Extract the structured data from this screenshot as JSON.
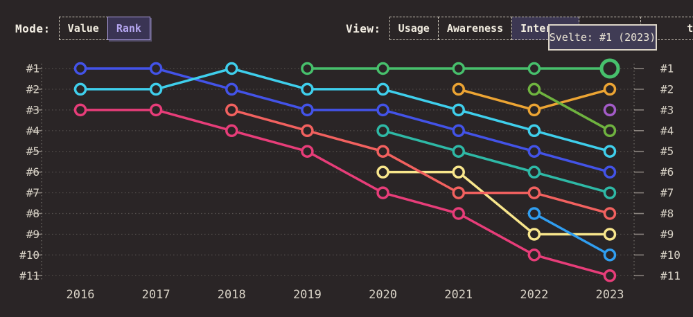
{
  "colors": {
    "background": "#2a2526",
    "grid": "#d8d2c6",
    "text_cream": "#f1ecdf",
    "accent_purple": "#b6a7f2",
    "tooltip_bg": "#403c55",
    "tooltip_border": "#ddd6c8"
  },
  "controls": {
    "mode": {
      "label": "Mode:",
      "options": [
        {
          "label": "Value",
          "selected": false
        },
        {
          "label": "Rank",
          "selected": true
        }
      ]
    },
    "view": {
      "label": "View:",
      "options": [
        {
          "label": "Usage",
          "selected": false
        },
        {
          "label": "Awareness",
          "selected": false
        },
        {
          "label": "Interest",
          "selected": true
        },
        {
          "label": "",
          "selected": false,
          "covered_by_tooltip": true
        },
        {
          "label": "ty",
          "selected": false,
          "partially_covered": true
        }
      ]
    }
  },
  "tooltip": {
    "text": "Svelte: #1 (2023)"
  },
  "chart_data": {
    "type": "line",
    "subtype": "bump-rank-chart",
    "x": [
      2016,
      2017,
      2018,
      2019,
      2020,
      2021,
      2022,
      2023
    ],
    "y_rank_labels": [
      "#1",
      "#2",
      "#3",
      "#4",
      "#5",
      "#6",
      "#7",
      "#8",
      "#9",
      "#10",
      "#11"
    ],
    "y_axis": {
      "orientation": "rank 1 at top",
      "shown_on": "both sides",
      "grid": "dotted"
    },
    "series": [
      {
        "id": "pink",
        "color": "#e73d79",
        "ranks": [
          3,
          3,
          4,
          5,
          7,
          8,
          10,
          11
        ]
      },
      {
        "id": "yellow",
        "color": "#f8e68c",
        "ranks": [
          null,
          null,
          null,
          null,
          6,
          6,
          9,
          9
        ]
      },
      {
        "id": "coral",
        "color": "#f2615f",
        "ranks": [
          null,
          null,
          3,
          4,
          5,
          7,
          7,
          8
        ]
      },
      {
        "id": "royal-blue",
        "color": "#4353e8",
        "ranks": [
          1,
          1,
          2,
          3,
          3,
          4,
          5,
          6
        ]
      },
      {
        "id": "cyan",
        "color": "#3fcfec",
        "ranks": [
          2,
          2,
          1,
          2,
          2,
          3,
          4,
          5
        ]
      },
      {
        "id": "teal",
        "color": "#2eb9a6",
        "ranks": [
          null,
          null,
          null,
          null,
          4,
          5,
          6,
          7
        ]
      },
      {
        "id": "orange",
        "color": "#eca433",
        "ranks": [
          null,
          null,
          null,
          null,
          null,
          2,
          3,
          2
        ]
      },
      {
        "id": "olive-green",
        "color": "#6fb33f",
        "ranks": [
          null,
          null,
          null,
          null,
          null,
          null,
          2,
          4
        ]
      },
      {
        "id": "dodger-blue",
        "color": "#309ef0",
        "ranks": [
          null,
          null,
          null,
          null,
          null,
          null,
          8,
          10
        ]
      },
      {
        "id": "purple",
        "color": "#a35bc8",
        "ranks": [
          null,
          null,
          null,
          null,
          null,
          null,
          null,
          3
        ]
      },
      {
        "id": "svelte-green",
        "color": "#47c06c",
        "ranks": [
          null,
          null,
          null,
          1,
          1,
          1,
          1,
          1
        ]
      }
    ],
    "highlight": {
      "series": "svelte-green",
      "year": 2023,
      "rank": 1,
      "label": "Svelte"
    }
  }
}
